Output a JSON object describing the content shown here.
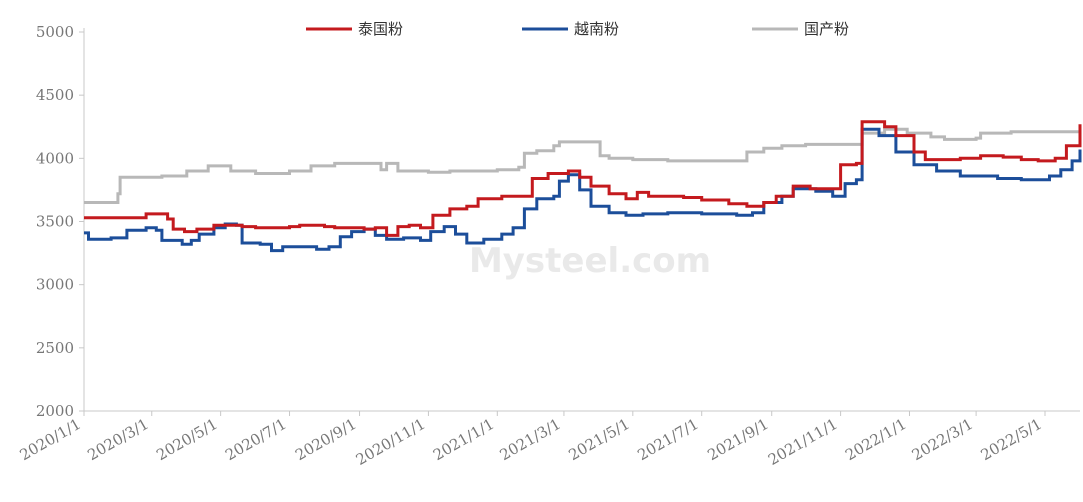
{
  "chart_data": {
    "type": "line",
    "title": "",
    "xlabel": "",
    "ylabel": "",
    "ylim": [
      2000,
      5000
    ],
    "x_range": [
      "2020-01-01",
      "2022-06-01"
    ],
    "y_ticks": [
      "5000",
      "4500",
      "4000",
      "3500",
      "3000",
      "2500",
      "2000"
    ],
    "x_tick_labels": [
      "2020/1/1",
      "2020/3/1",
      "2020/5/1",
      "2020/7/1",
      "2020/9/1",
      "2020/11/1",
      "2021/1/1",
      "2021/3/1",
      "2021/5/1",
      "2021/7/1",
      "2021/9/1",
      "2021/11/1",
      "2022/1/1",
      "2022/3/1",
      "2022/5/1"
    ],
    "x_tick_dates": [
      "2020-01-01",
      "2020-03-01",
      "2020-05-01",
      "2020-07-01",
      "2020-09-01",
      "2020-11-01",
      "2021-01-01",
      "2021-03-01",
      "2021-05-01",
      "2021-07-01",
      "2021-09-01",
      "2021-11-01",
      "2022-01-01",
      "2022-03-01",
      "2022-05-01"
    ],
    "grid": false,
    "legend_position": "top",
    "watermark": "Mysteel.com",
    "series": [
      {
        "name": "国产粉",
        "color": "#b8b8b8",
        "points": [
          [
            "2020-01-01",
            3650
          ],
          [
            "2020-01-29",
            3650
          ],
          [
            "2020-01-31",
            3720
          ],
          [
            "2020-02-02",
            3850
          ],
          [
            "2020-03-10",
            3860
          ],
          [
            "2020-04-01",
            3900
          ],
          [
            "2020-04-20",
            3940
          ],
          [
            "2020-05-10",
            3900
          ],
          [
            "2020-06-01",
            3880
          ],
          [
            "2020-07-01",
            3900
          ],
          [
            "2020-07-20",
            3940
          ],
          [
            "2020-08-10",
            3960
          ],
          [
            "2020-09-15",
            3960
          ],
          [
            "2020-09-20",
            3910
          ],
          [
            "2020-09-25",
            3960
          ],
          [
            "2020-10-05",
            3900
          ],
          [
            "2020-11-01",
            3890
          ],
          [
            "2020-11-20",
            3900
          ],
          [
            "2020-12-20",
            3900
          ],
          [
            "2021-01-01",
            3910
          ],
          [
            "2021-01-20",
            3930
          ],
          [
            "2021-01-25",
            4040
          ],
          [
            "2021-02-05",
            4060
          ],
          [
            "2021-02-20",
            4100
          ],
          [
            "2021-02-25",
            4130
          ],
          [
            "2021-03-05",
            4130
          ],
          [
            "2021-03-30",
            4130
          ],
          [
            "2021-04-02",
            4020
          ],
          [
            "2021-04-10",
            4000
          ],
          [
            "2021-05-01",
            3990
          ],
          [
            "2021-06-01",
            3980
          ],
          [
            "2021-07-01",
            3980
          ],
          [
            "2021-08-01",
            3980
          ],
          [
            "2021-08-10",
            4050
          ],
          [
            "2021-08-25",
            4080
          ],
          [
            "2021-09-10",
            4100
          ],
          [
            "2021-10-01",
            4110
          ],
          [
            "2021-10-20",
            4110
          ],
          [
            "2021-11-10",
            4110
          ],
          [
            "2021-11-20",
            4200
          ],
          [
            "2021-12-10",
            4230
          ],
          [
            "2021-12-30",
            4200
          ],
          [
            "2022-01-20",
            4170
          ],
          [
            "2022-02-01",
            4150
          ],
          [
            "2022-03-01",
            4160
          ],
          [
            "2022-03-05",
            4200
          ],
          [
            "2022-04-01",
            4210
          ],
          [
            "2022-05-20",
            4210
          ],
          [
            "2022-06-01",
            4210
          ]
        ]
      },
      {
        "name": "越南粉",
        "color": "#1c4e9a",
        "points": [
          [
            "2020-01-01",
            3410
          ],
          [
            "2020-01-05",
            3360
          ],
          [
            "2020-01-25",
            3370
          ],
          [
            "2020-02-08",
            3430
          ],
          [
            "2020-02-25",
            3450
          ],
          [
            "2020-03-05",
            3430
          ],
          [
            "2020-03-10",
            3350
          ],
          [
            "2020-03-28",
            3320
          ],
          [
            "2020-04-05",
            3350
          ],
          [
            "2020-04-12",
            3400
          ],
          [
            "2020-04-25",
            3450
          ],
          [
            "2020-05-05",
            3480
          ],
          [
            "2020-05-15",
            3470
          ],
          [
            "2020-05-20",
            3330
          ],
          [
            "2020-06-05",
            3320
          ],
          [
            "2020-06-15",
            3270
          ],
          [
            "2020-06-25",
            3300
          ],
          [
            "2020-07-10",
            3300
          ],
          [
            "2020-07-25",
            3280
          ],
          [
            "2020-08-05",
            3300
          ],
          [
            "2020-08-15",
            3380
          ],
          [
            "2020-08-25",
            3420
          ],
          [
            "2020-09-05",
            3440
          ],
          [
            "2020-09-15",
            3390
          ],
          [
            "2020-09-25",
            3360
          ],
          [
            "2020-10-10",
            3370
          ],
          [
            "2020-10-25",
            3350
          ],
          [
            "2020-11-03",
            3420
          ],
          [
            "2020-11-15",
            3460
          ],
          [
            "2020-11-25",
            3400
          ],
          [
            "2020-12-05",
            3330
          ],
          [
            "2020-12-20",
            3360
          ],
          [
            "2021-01-05",
            3400
          ],
          [
            "2021-01-15",
            3450
          ],
          [
            "2021-01-25",
            3600
          ],
          [
            "2021-02-05",
            3680
          ],
          [
            "2021-02-20",
            3700
          ],
          [
            "2021-02-25",
            3820
          ],
          [
            "2021-03-05",
            3870
          ],
          [
            "2021-03-15",
            3750
          ],
          [
            "2021-03-25",
            3620
          ],
          [
            "2021-04-10",
            3570
          ],
          [
            "2021-04-25",
            3550
          ],
          [
            "2021-05-10",
            3560
          ],
          [
            "2021-06-01",
            3570
          ],
          [
            "2021-07-01",
            3560
          ],
          [
            "2021-08-01",
            3550
          ],
          [
            "2021-08-15",
            3570
          ],
          [
            "2021-08-25",
            3650
          ],
          [
            "2021-09-10",
            3700
          ],
          [
            "2021-09-20",
            3760
          ],
          [
            "2021-10-10",
            3740
          ],
          [
            "2021-10-25",
            3700
          ],
          [
            "2021-11-05",
            3800
          ],
          [
            "2021-11-15",
            3830
          ],
          [
            "2021-11-20",
            4230
          ],
          [
            "2021-12-05",
            4180
          ],
          [
            "2021-12-20",
            4050
          ],
          [
            "2022-01-05",
            3950
          ],
          [
            "2022-01-25",
            3900
          ],
          [
            "2022-02-15",
            3860
          ],
          [
            "2022-03-05",
            3860
          ],
          [
            "2022-03-20",
            3840
          ],
          [
            "2022-04-10",
            3830
          ],
          [
            "2022-04-25",
            3830
          ],
          [
            "2022-05-05",
            3860
          ],
          [
            "2022-05-15",
            3910
          ],
          [
            "2022-05-25",
            3980
          ],
          [
            "2022-06-01",
            4070
          ]
        ]
      },
      {
        "name": "泰国粉",
        "color": "#c41a1e",
        "points": [
          [
            "2020-01-01",
            3530
          ],
          [
            "2020-02-20",
            3530
          ],
          [
            "2020-02-25",
            3560
          ],
          [
            "2020-03-05",
            3560
          ],
          [
            "2020-03-15",
            3520
          ],
          [
            "2020-03-20",
            3440
          ],
          [
            "2020-03-30",
            3420
          ],
          [
            "2020-04-10",
            3440
          ],
          [
            "2020-04-25",
            3470
          ],
          [
            "2020-05-10",
            3470
          ],
          [
            "2020-05-20",
            3460
          ],
          [
            "2020-06-01",
            3450
          ],
          [
            "2020-07-01",
            3460
          ],
          [
            "2020-07-10",
            3470
          ],
          [
            "2020-08-01",
            3460
          ],
          [
            "2020-08-10",
            3450
          ],
          [
            "2020-09-05",
            3440
          ],
          [
            "2020-09-15",
            3450
          ],
          [
            "2020-09-25",
            3390
          ],
          [
            "2020-10-05",
            3460
          ],
          [
            "2020-10-15",
            3470
          ],
          [
            "2020-10-25",
            3450
          ],
          [
            "2020-11-05",
            3550
          ],
          [
            "2020-11-20",
            3600
          ],
          [
            "2020-12-05",
            3620
          ],
          [
            "2020-12-15",
            3680
          ],
          [
            "2021-01-05",
            3700
          ],
          [
            "2021-01-25",
            3700
          ],
          [
            "2021-02-01",
            3840
          ],
          [
            "2021-02-15",
            3880
          ],
          [
            "2021-03-01",
            3880
          ],
          [
            "2021-03-05",
            3900
          ],
          [
            "2021-03-15",
            3850
          ],
          [
            "2021-03-25",
            3780
          ],
          [
            "2021-04-10",
            3720
          ],
          [
            "2021-04-25",
            3680
          ],
          [
            "2021-05-05",
            3730
          ],
          [
            "2021-05-15",
            3700
          ],
          [
            "2021-06-15",
            3690
          ],
          [
            "2021-07-01",
            3670
          ],
          [
            "2021-07-25",
            3640
          ],
          [
            "2021-08-10",
            3620
          ],
          [
            "2021-08-25",
            3650
          ],
          [
            "2021-09-05",
            3700
          ],
          [
            "2021-09-20",
            3780
          ],
          [
            "2021-10-05",
            3760
          ],
          [
            "2021-10-20",
            3760
          ],
          [
            "2021-11-01",
            3950
          ],
          [
            "2021-11-15",
            3960
          ],
          [
            "2021-11-20",
            4290
          ],
          [
            "2021-12-10",
            4250
          ],
          [
            "2021-12-20",
            4180
          ],
          [
            "2022-01-05",
            4050
          ],
          [
            "2022-01-15",
            3990
          ],
          [
            "2022-02-15",
            4000
          ],
          [
            "2022-03-05",
            4020
          ],
          [
            "2022-03-25",
            4010
          ],
          [
            "2022-04-10",
            3990
          ],
          [
            "2022-04-25",
            3980
          ],
          [
            "2022-05-10",
            4000
          ],
          [
            "2022-05-20",
            4100
          ],
          [
            "2022-06-01",
            4270
          ]
        ]
      }
    ]
  }
}
